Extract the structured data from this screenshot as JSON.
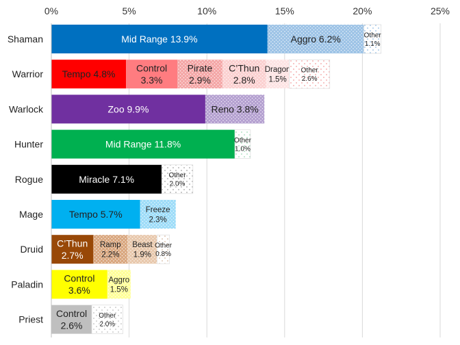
{
  "chart_data": {
    "type": "bar",
    "orientation": "horizontal",
    "stacked": true,
    "title": "",
    "xlabel": "",
    "ylabel": "",
    "xlim": [
      0,
      25
    ],
    "x_ticks": [
      "0%",
      "5%",
      "10%",
      "15%",
      "20%",
      "25%"
    ],
    "grid": true,
    "legend": "none",
    "categories": [
      "Shaman",
      "Warrior",
      "Warlock",
      "Hunter",
      "Rogue",
      "Mage",
      "Druid",
      "Paladin",
      "Priest"
    ],
    "rows": [
      {
        "category": "Shaman",
        "segments": [
          {
            "label": "Mid Range",
            "value": 13.9,
            "text": "Mid Range 13.9%",
            "fill": "#0070c0",
            "pattern": "none"
          },
          {
            "label": "Aggro",
            "value": 6.2,
            "text": "Aggro 6.2%",
            "fill": "#9dc3e6",
            "pattern": "dots"
          },
          {
            "label": "Other",
            "value": 1.1,
            "text": "Other 1.1%",
            "fill": "#ffffff",
            "pattern": "sparse-dots",
            "dot": "#6fa8dc"
          }
        ]
      },
      {
        "category": "Warrior",
        "segments": [
          {
            "label": "Tempo",
            "value": 4.8,
            "text": "Tempo 4.8%",
            "fill": "#ff0000",
            "pattern": "none"
          },
          {
            "label": "Control",
            "value": 3.3,
            "text": "Control 3.3%",
            "fill": "#ff7c80",
            "pattern": "none"
          },
          {
            "label": "Pirate",
            "value": 2.9,
            "text": "Pirate 2.9%",
            "fill": "#f4a6a6",
            "pattern": "dots"
          },
          {
            "label": "C'Thun",
            "value": 2.8,
            "text": "C’Thun 2.8%",
            "fill": "#fbd0d0",
            "pattern": "dots"
          },
          {
            "label": "Dragon",
            "value": 1.5,
            "text": "Dragon 1.5%",
            "fill": "#fde4e4",
            "pattern": "dots"
          },
          {
            "label": "Other",
            "value": 2.6,
            "text": "Other 2.6%",
            "fill": "#ffffff",
            "pattern": "sparse-dots",
            "dot": "#f08080"
          }
        ]
      },
      {
        "category": "Warlock",
        "segments": [
          {
            "label": "Zoo",
            "value": 9.9,
            "text": "Zoo 9.9%",
            "fill": "#7030a0",
            "pattern": "none"
          },
          {
            "label": "Reno",
            "value": 3.8,
            "text": "Reno 3.8%",
            "fill": "#b4a0d0",
            "pattern": "dots"
          }
        ]
      },
      {
        "category": "Hunter",
        "segments": [
          {
            "label": "Mid Range",
            "value": 11.8,
            "text": "Mid Range 11.8%",
            "fill": "#00b050",
            "pattern": "none"
          },
          {
            "label": "Other",
            "value": 1.0,
            "text": "Other 1.0%",
            "fill": "#ffffff",
            "pattern": "sparse-dots",
            "dot": "#7fcf9f"
          }
        ]
      },
      {
        "category": "Rogue",
        "segments": [
          {
            "label": "Miracle",
            "value": 7.1,
            "text": "Miracle 7.1%",
            "fill": "#000000",
            "pattern": "none"
          },
          {
            "label": "Other",
            "value": 2.0,
            "text": "Other 2.0%",
            "fill": "#ffffff",
            "pattern": "sparse-dots",
            "dot": "#888888"
          }
        ]
      },
      {
        "category": "Mage",
        "segments": [
          {
            "label": "Tempo",
            "value": 5.7,
            "text": "Tempo 5.7%",
            "fill": "#00b0f0",
            "pattern": "none"
          },
          {
            "label": "Freeze",
            "value": 2.3,
            "text": "Freeze 2.3%",
            "fill": "#9ddcf8",
            "pattern": "dots"
          }
        ]
      },
      {
        "category": "Druid",
        "segments": [
          {
            "label": "C'Thun",
            "value": 2.7,
            "text": "C’Thun 2.7%",
            "fill": "#984807",
            "pattern": "none"
          },
          {
            "label": "Ramp",
            "value": 2.2,
            "text": "Ramp 2.2%",
            "fill": "#d9a77f",
            "pattern": "dots"
          },
          {
            "label": "Beast",
            "value": 1.9,
            "text": "Beast 1.9%",
            "fill": "#e8c8ac",
            "pattern": "dots"
          },
          {
            "label": "Other",
            "value": 0.8,
            "text": "Other 0.8%",
            "fill": "#ffffff",
            "pattern": "sparse-dots",
            "dot": "#c8a080"
          }
        ]
      },
      {
        "category": "Paladin",
        "segments": [
          {
            "label": "Control",
            "value": 3.6,
            "text": "Control 3.6%",
            "fill": "#ffff00",
            "pattern": "none"
          },
          {
            "label": "Aggro",
            "value": 1.5,
            "text": "Aggro 1.5%",
            "fill": "#ffff99",
            "pattern": "dots"
          }
        ]
      },
      {
        "category": "Priest",
        "segments": [
          {
            "label": "Control",
            "value": 2.6,
            "text": "Control 2.6%",
            "fill": "#bfbfbf",
            "pattern": "none"
          },
          {
            "label": "Other",
            "value": 2.0,
            "text": "Other 2.0%",
            "fill": "#ffffff",
            "pattern": "sparse-dots",
            "dot": "#aaaaaa"
          }
        ]
      }
    ]
  }
}
